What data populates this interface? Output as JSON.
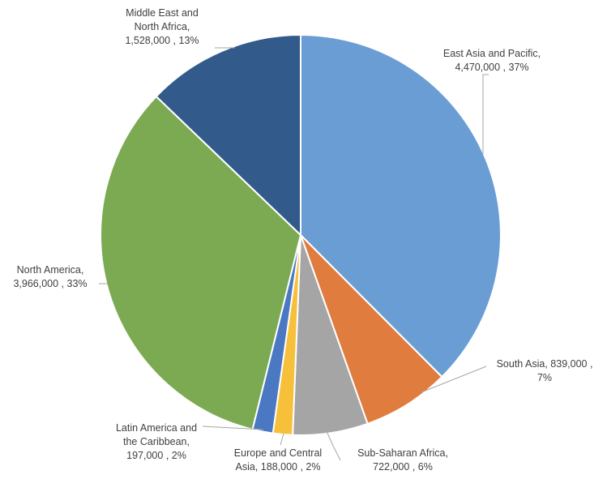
{
  "chart_data": {
    "type": "pie",
    "title": "",
    "categories": [
      "East Asia and Pacific",
      "South Asia",
      "Sub-Saharan Africa",
      "Europe and Central Asia",
      "Latin America and the Caribbean",
      "North America",
      "Middle East and North Africa"
    ],
    "values": [
      4470000,
      839000,
      722000,
      188000,
      197000,
      3966000,
      1528000
    ],
    "colors": [
      "#6a9dd3",
      "#e07c3e",
      "#a5a5a5",
      "#f7c03b",
      "#4a78c2",
      "#7caa52",
      "#325b8c"
    ],
    "data_labels": [
      {
        "lines": [
          "East Asia and Pacific,",
          "4,470,000 , 37%"
        ]
      },
      {
        "lines": [
          "South Asia, 839,000 ,",
          "7%"
        ]
      },
      {
        "lines": [
          "Sub-Saharan Africa,",
          "722,000 , 6%"
        ]
      },
      {
        "lines": [
          "Europe and Central",
          "Asia, 188,000 , 2%"
        ]
      },
      {
        "lines": [
          "Latin America and",
          "the Caribbean,",
          "197,000 , 2%"
        ]
      },
      {
        "lines": [
          "North America,",
          "3,966,000 , 33%"
        ]
      },
      {
        "lines": [
          "Middle East and",
          "North Africa,",
          "1,528,000 , 13%"
        ]
      }
    ],
    "legend": "none"
  }
}
